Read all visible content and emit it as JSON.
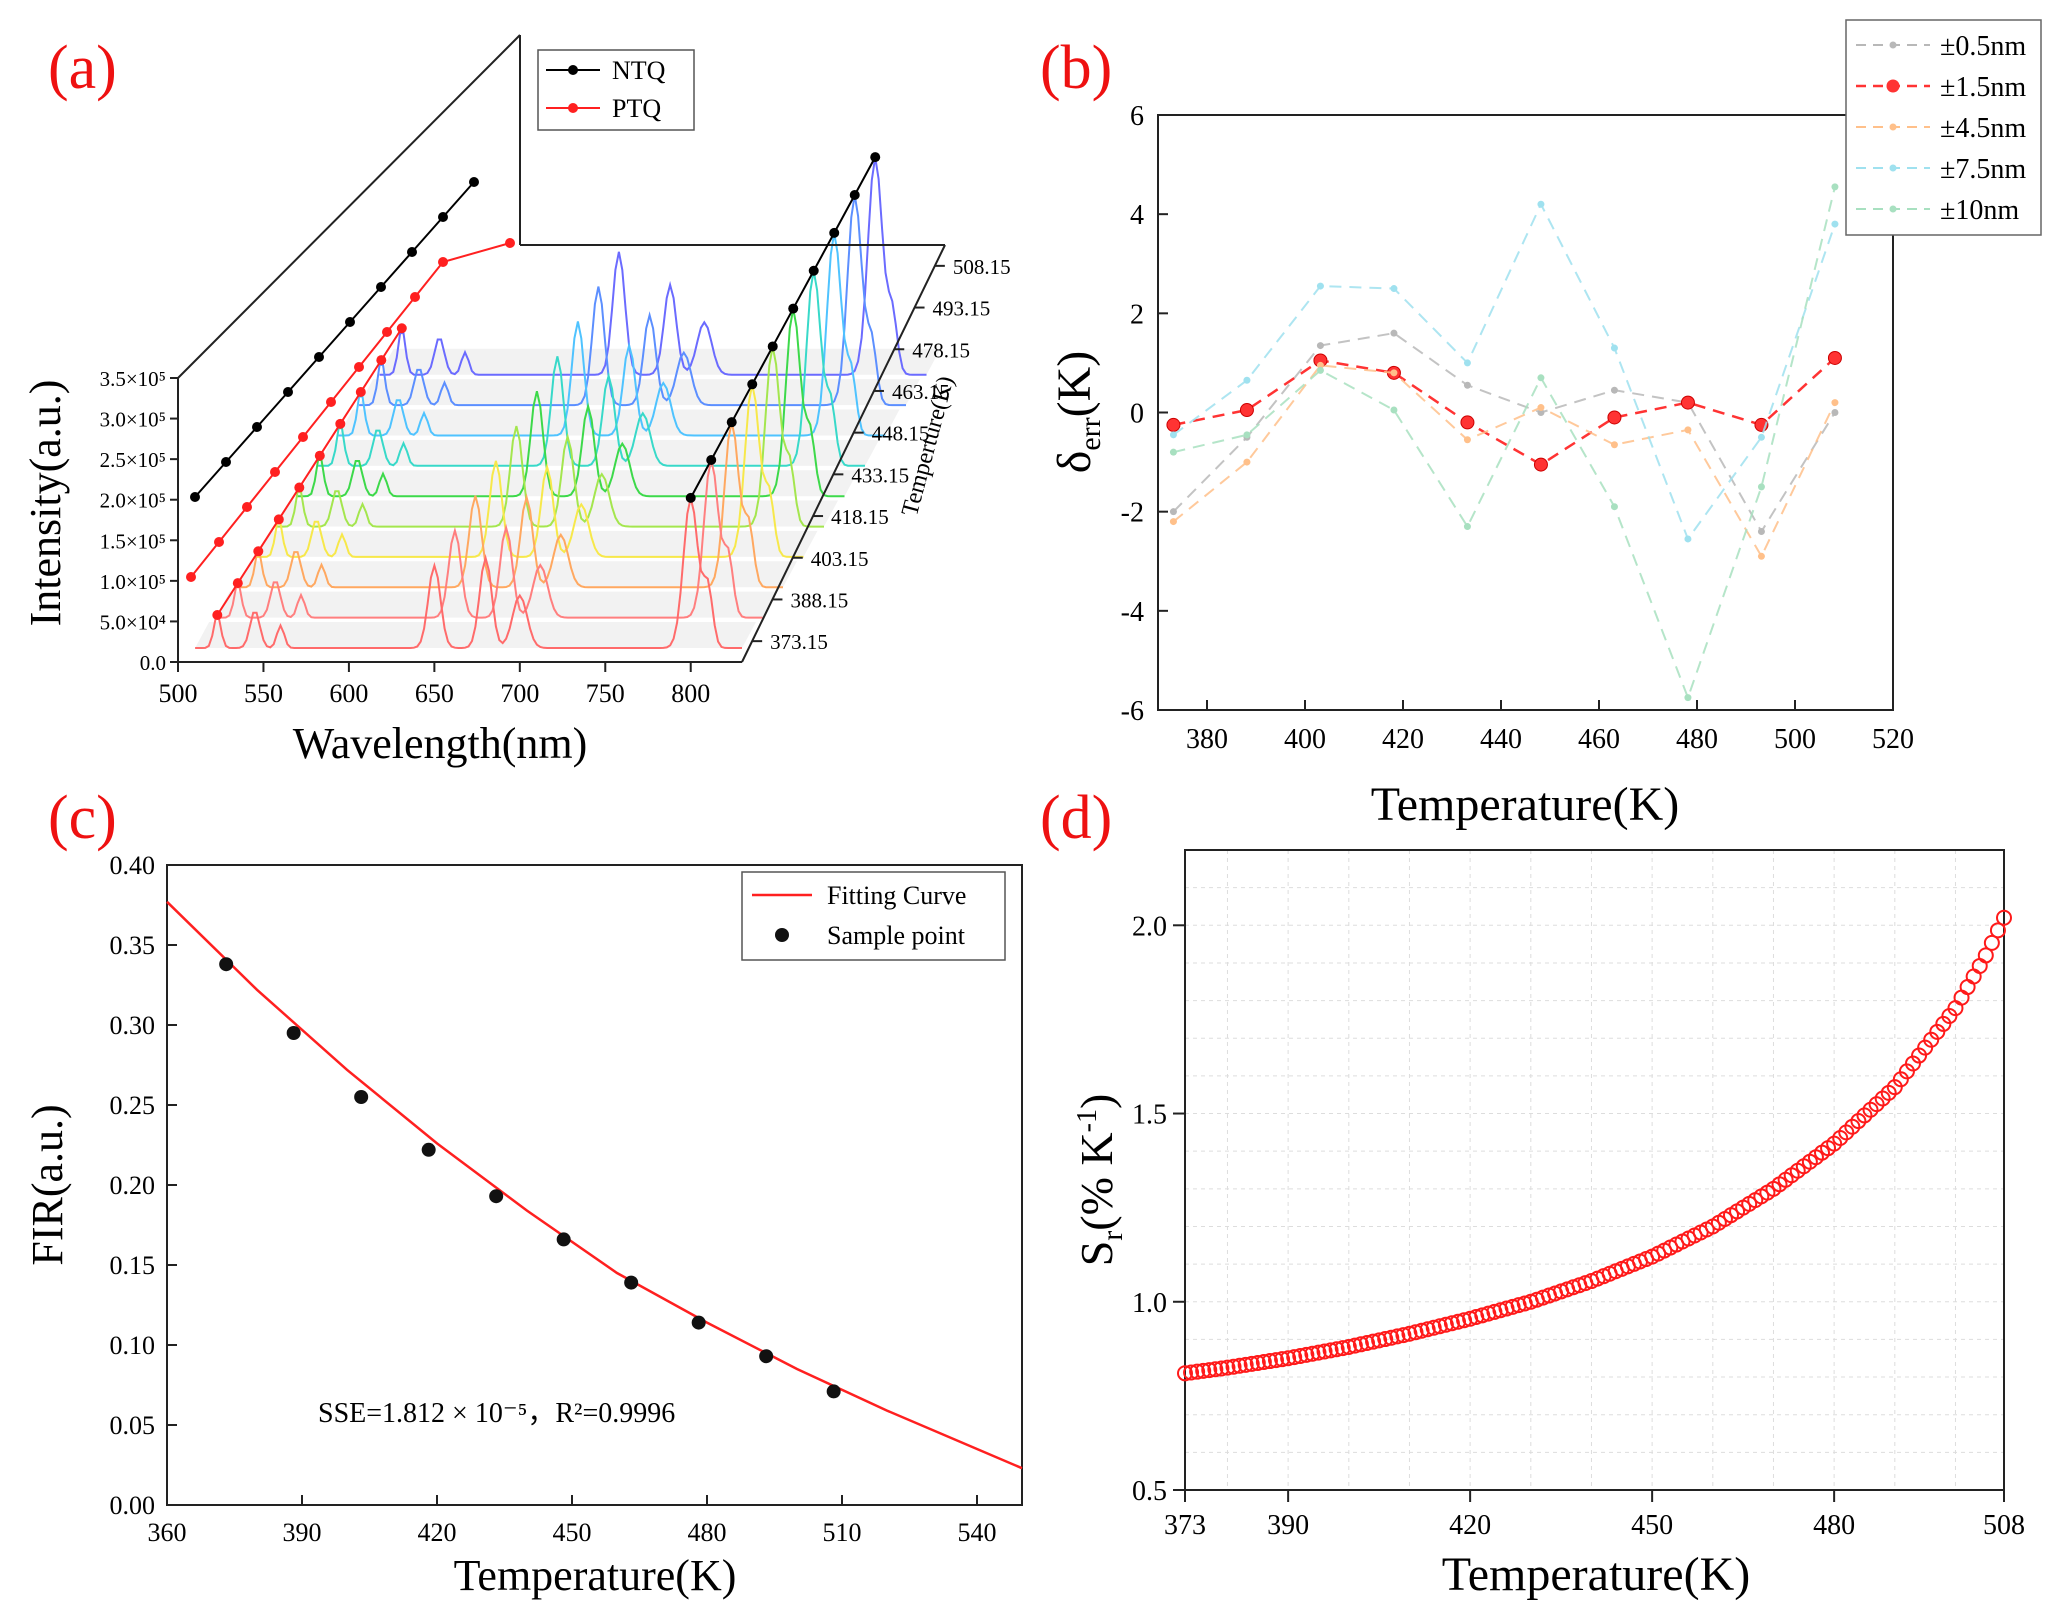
{
  "figure": {
    "panel_labels": [
      "(a)",
      "(b)",
      "(c)",
      "(d)"
    ]
  },
  "chart_data": [
    {
      "panel": "(a)",
      "type": "line",
      "title": "",
      "xlabel": "Wavelength(nm)",
      "ylabel": "Intensity(a.u.)",
      "zlabel": "Temperture(K)",
      "xlim": [
        500,
        830
      ],
      "ylim": [
        0,
        350000
      ],
      "x_ticks": [
        "500",
        "550",
        "600",
        "650",
        "700",
        "750",
        "800"
      ],
      "y_ticks": [
        "0.0",
        "5.0×10⁴",
        "1.0×10⁵",
        "1.5×10⁵",
        "2.0×10⁵",
        "2.5×10⁵",
        "3.0×10⁵",
        "3.5×10⁵"
      ],
      "z_ticks": [
        "373.15",
        "388.15",
        "403.15",
        "418.15",
        "433.15",
        "448.15",
        "463.15",
        "478.15",
        "493.15",
        "508.15"
      ],
      "temperatures": [
        373.15,
        388.15,
        403.15,
        418.15,
        433.15,
        448.15,
        463.15,
        478.15,
        493.15,
        508.15
      ],
      "curve_colors": [
        "#ff6b6b",
        "#ff7f7f",
        "#ffa860",
        "#f7e84a",
        "#a4e64e",
        "#3dd94a",
        "#38d9c9",
        "#4fc3ff",
        "#5c8fff",
        "#6b6bff"
      ],
      "legend": [
        {
          "label": "NTQ",
          "color": "#000000"
        },
        {
          "label": "PTQ",
          "color": "#ff2020"
        }
      ]
    },
    {
      "panel": "(b)",
      "type": "line",
      "title": "",
      "xlabel": "Temperature(K)",
      "ylabel": "δerr(K)",
      "ylabel_main": "δ",
      "ylabel_sub": "err",
      "ylabel_tail": "(K)",
      "xlim": [
        370,
        520
      ],
      "ylim": [
        -6,
        6
      ],
      "x_ticks": [
        "380",
        "400",
        "420",
        "440",
        "460",
        "480",
        "500",
        "520"
      ],
      "y_ticks": [
        "-6",
        "-4",
        "-2",
        "0",
        "2",
        "4",
        "6"
      ],
      "x": [
        373.15,
        388.15,
        403.15,
        418.15,
        433.15,
        448.15,
        463.15,
        478.15,
        493.15,
        508.15
      ],
      "series": [
        {
          "name": "±0.5nm",
          "color": "#b8b8b8",
          "values": [
            -2.0,
            -0.5,
            1.35,
            1.6,
            0.55,
            0.0,
            0.45,
            0.2,
            -2.4,
            0.0
          ]
        },
        {
          "name": "±1.5nm",
          "color": "#ff3333",
          "values": [
            -0.25,
            0.05,
            1.05,
            0.8,
            -0.2,
            -1.05,
            -0.1,
            0.2,
            -0.25,
            1.1
          ]
        },
        {
          "name": "±4.5nm",
          "color": "#ffc08a",
          "values": [
            -2.2,
            -1.0,
            0.95,
            0.8,
            -0.55,
            0.1,
            -0.65,
            -0.35,
            -2.9,
            0.2
          ]
        },
        {
          "name": "±7.5nm",
          "color": "#9fe1ef",
          "values": [
            -0.45,
            0.65,
            2.55,
            2.5,
            1.0,
            4.2,
            1.3,
            -2.55,
            -0.5,
            3.8
          ]
        },
        {
          "name": "±10nm",
          "color": "#a8e0c0",
          "values": [
            -0.8,
            -0.45,
            0.85,
            0.05,
            -2.3,
            0.7,
            -1.9,
            -5.75,
            -1.5,
            4.55
          ]
        }
      ]
    },
    {
      "panel": "(c)",
      "type": "scatter",
      "title": "",
      "xlabel": "Temperature(K)",
      "ylabel": "FIR(a.u.)",
      "xlim": [
        360,
        550
      ],
      "ylim": [
        0.0,
        0.4
      ],
      "x_ticks": [
        "360",
        "390",
        "420",
        "450",
        "480",
        "510",
        "540"
      ],
      "y_ticks": [
        "0.00",
        "0.05",
        "0.10",
        "0.15",
        "0.20",
        "0.25",
        "0.30",
        "0.35",
        "0.40"
      ],
      "fit_curve": {
        "name": "Fitting Curve",
        "color": "#ff2020",
        "x": [
          360,
          380,
          400,
          420,
          440,
          460,
          480,
          500,
          520,
          540,
          550
        ],
        "values": [
          0.377,
          0.322,
          0.272,
          0.226,
          0.184,
          0.145,
          0.114,
          0.085,
          0.059,
          0.035,
          0.023
        ]
      },
      "series": [
        {
          "name": "Sample point",
          "color": "#000000",
          "x": [
            373.15,
            388.15,
            403.15,
            418.15,
            433.15,
            448.15,
            463.15,
            478.15,
            493.15,
            508.15
          ],
          "values": [
            0.338,
            0.295,
            0.255,
            0.222,
            0.193,
            0.166,
            0.139,
            0.114,
            0.093,
            0.071
          ]
        }
      ],
      "annotation": "SSE=1.812 × 10⁻⁵，R²=0.9996"
    },
    {
      "panel": "(d)",
      "type": "scatter",
      "title": "",
      "xlabel": "Temperature(K)",
      "ylabel": "Sr(% K-1)",
      "ylabel_main": "S",
      "ylabel_sub": "r",
      "ylabel_mid": "(% K",
      "ylabel_sup": "-1",
      "ylabel_tail": ")",
      "xlim": [
        373,
        508
      ],
      "ylim": [
        0.5,
        2.2
      ],
      "x_ticks": [
        "373",
        "390",
        "420",
        "450",
        "480",
        "508"
      ],
      "y_ticks": [
        "0.5",
        "1.0",
        "1.5",
        "2.0"
      ],
      "grid": true,
      "series": [
        {
          "name": "Sr",
          "color": "#ff1a1a",
          "x": [
            373,
            380,
            390,
            400,
            410,
            420,
            430,
            440,
            450,
            460,
            470,
            480,
            490,
            500,
            505,
            508
          ],
          "values": [
            0.81,
            0.825,
            0.85,
            0.88,
            0.915,
            0.955,
            1.0,
            1.055,
            1.12,
            1.2,
            1.3,
            1.42,
            1.57,
            1.78,
            1.92,
            2.02
          ]
        }
      ]
    }
  ]
}
